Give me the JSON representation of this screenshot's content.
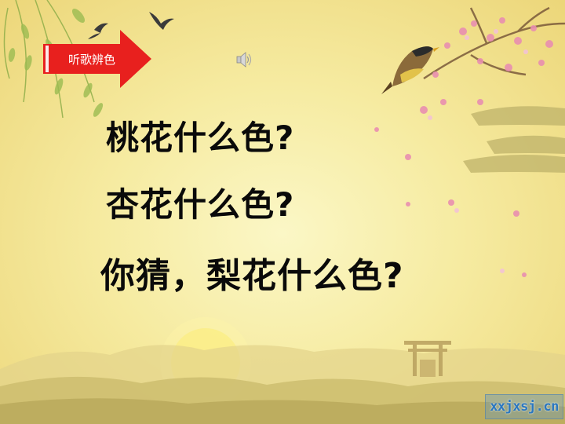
{
  "slide": {
    "button_label": "听歌辨色",
    "questions": [
      "桃花什么色?",
      "杏花什么色?",
      "你猜，梨花什么色?"
    ],
    "watermark": "xxjxsj.cn"
  },
  "colors": {
    "button_red": "#e8201e",
    "text": "#0a0a0a",
    "background": "#f6eba1",
    "blossom_pink": "#e98fb0"
  },
  "icons": [
    "arrow-button-icon",
    "speaker-icon",
    "willow-branch",
    "swallow-bird",
    "perched-bird",
    "plum-blossom-branch",
    "setting-sun",
    "torii-gate"
  ]
}
